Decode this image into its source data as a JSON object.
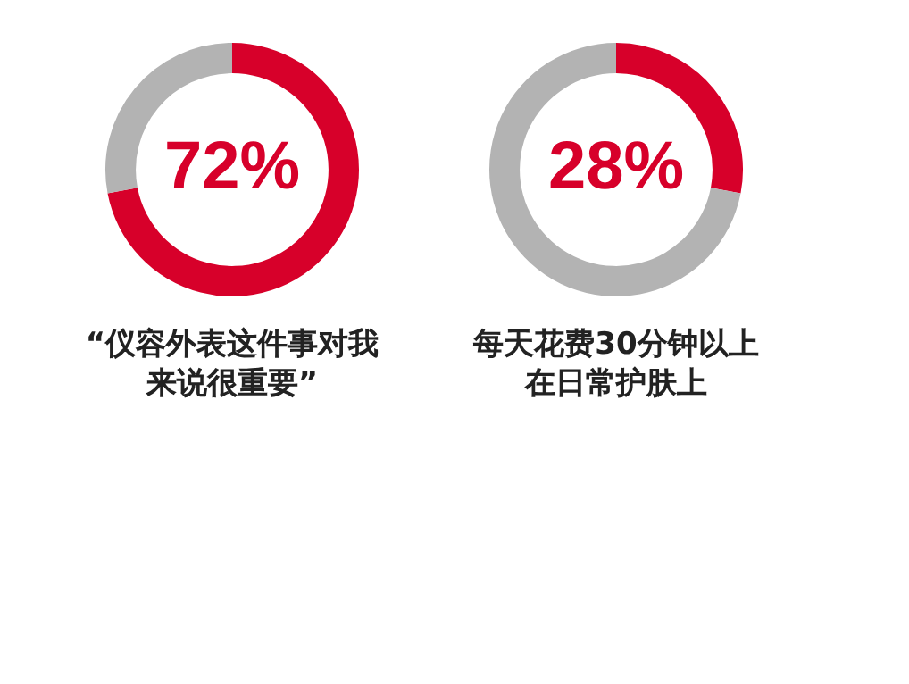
{
  "chart_data": [
    {
      "type": "donut",
      "title": "“仪容外表这件事对我来说很重要”",
      "categories": [
        null,
        null
      ],
      "values": [
        72,
        28
      ],
      "colors": [
        "#d7002a",
        "#b3b3b3"
      ],
      "value_labels": [
        "72%",
        null
      ]
    },
    {
      "type": "donut",
      "title": "每天花费30分钟以上在日常护肤上",
      "categories": [
        null,
        null
      ],
      "values": [
        28,
        72
      ],
      "colors": [
        "#d7002a",
        "#b3b3b3"
      ],
      "value_labels": [
        "28%",
        null
      ]
    }
  ]
}
